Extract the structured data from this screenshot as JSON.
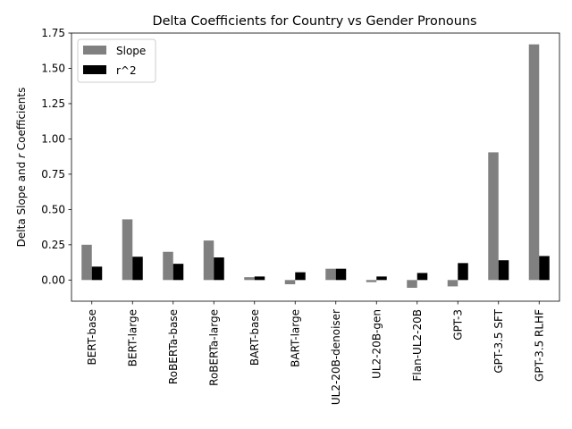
{
  "chart_data": {
    "type": "bar",
    "title": "Delta Coefficients for Country vs Gender Pronouns",
    "xlabel": "",
    "ylabel_parts": [
      "Delta Slope and ",
      "r",
      " Coefficients"
    ],
    "categories": [
      "BERT-base",
      "BERT-large",
      "RoBERTa-base",
      "RoBERTa-large",
      "BART-base",
      "BART-large",
      "UL2-20B-denoiser",
      "UL2-20B-gen",
      "Flan-UL2-20B",
      "GPT-3",
      "GPT-3.5 SFT",
      "GPT-3.5 RLHF"
    ],
    "series": [
      {
        "name": "Slope",
        "color": "#808080",
        "values": [
          0.25,
          0.43,
          0.2,
          0.28,
          0.02,
          -0.03,
          0.08,
          -0.015,
          -0.055,
          -0.045,
          0.905,
          1.67
        ]
      },
      {
        "name": "r^2",
        "color": "#000000",
        "values": [
          0.095,
          0.165,
          0.115,
          0.16,
          0.025,
          0.055,
          0.08,
          0.025,
          0.05,
          0.12,
          0.14,
          0.17
        ]
      }
    ],
    "ylim": [
      -0.15,
      1.75
    ],
    "yticks": [
      0.0,
      0.25,
      0.5,
      0.75,
      1.0,
      1.25,
      1.5,
      1.75
    ],
    "ytick_labels": [
      "0.00",
      "0.25",
      "0.50",
      "0.75",
      "1.00",
      "1.25",
      "1.50",
      "1.75"
    ],
    "grid": false,
    "legend_position": "top-left"
  }
}
